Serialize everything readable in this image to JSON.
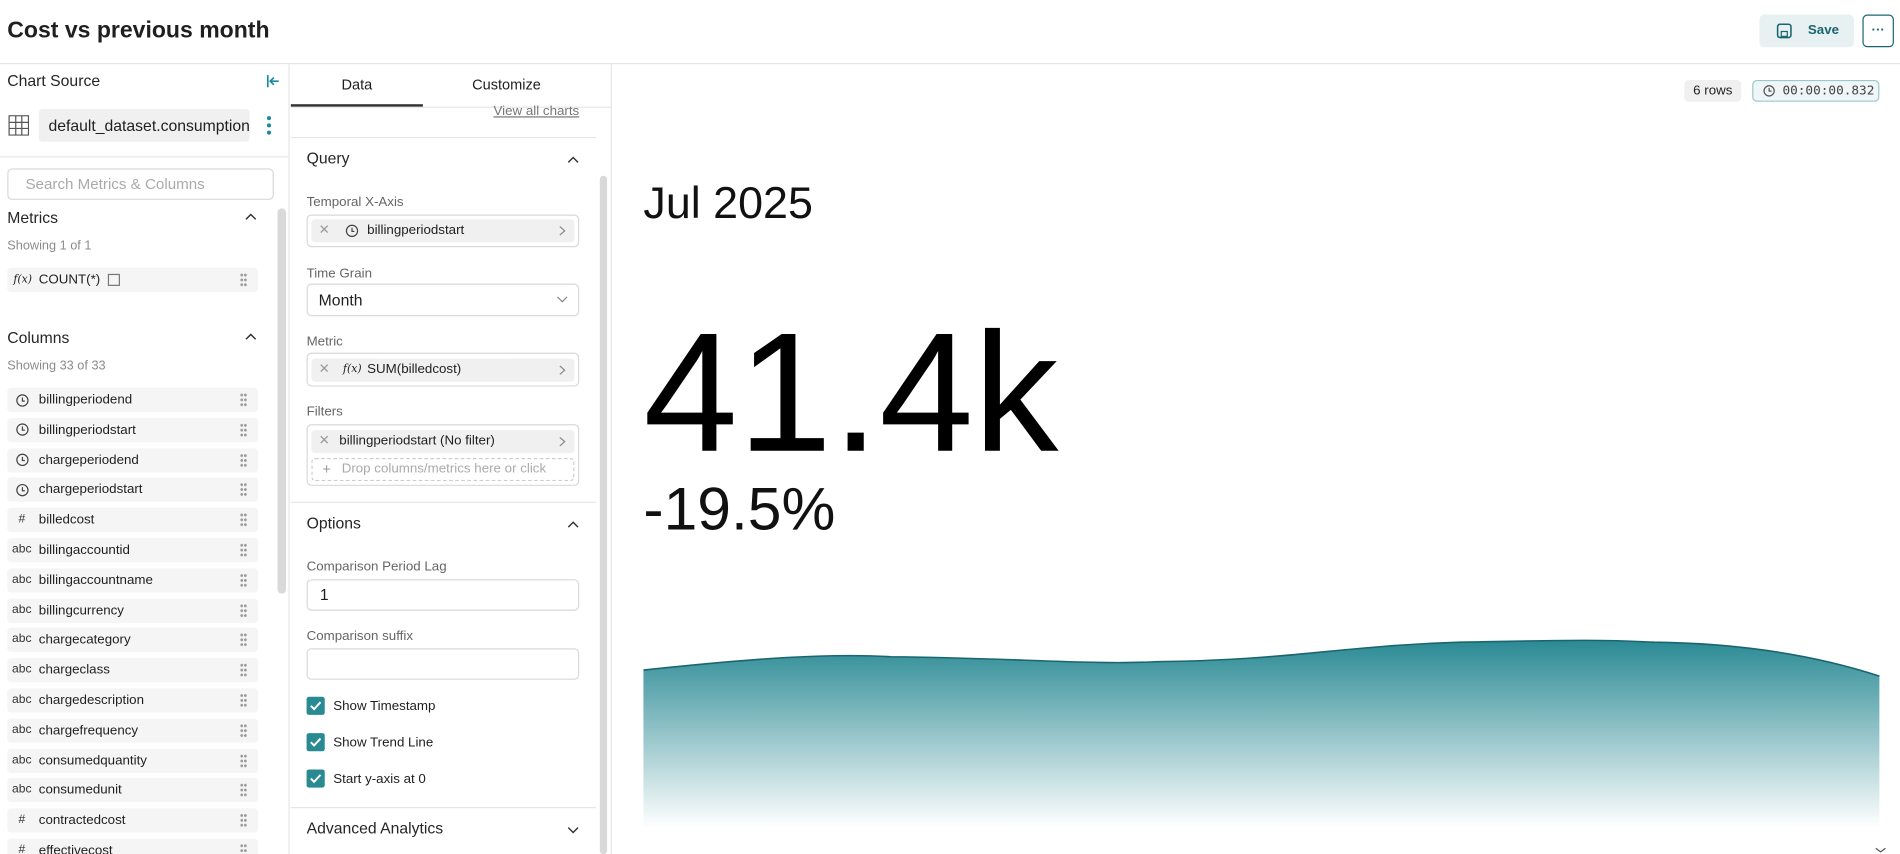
{
  "header": {
    "title": "Cost vs previous month",
    "save": "Save",
    "more": "···"
  },
  "source": {
    "title": "Chart Source",
    "dataset": "default_dataset.consumption",
    "search": "Search Metrics & Columns"
  },
  "metrics": {
    "title": "Metrics",
    "showing": "Showing 1 of 1",
    "items": [
      {
        "prefix": "f(x)",
        "name": "COUNT(*)"
      }
    ]
  },
  "columns": {
    "title": "Columns",
    "showing": "Showing 33 of 33",
    "items": [
      {
        "name": "billingperiodend"
      },
      {
        "name": "billingperiodstart"
      },
      {
        "name": "chargeperiodend"
      },
      {
        "name": "chargeperiodstart"
      },
      {
        "type_label": "#",
        "name": "billedcost"
      },
      {
        "type_label": "abc",
        "name": "billingaccountid"
      },
      {
        "type_label": "abc",
        "name": "billingaccountname"
      },
      {
        "type_label": "abc",
        "name": "billingcurrency"
      },
      {
        "type_label": "abc",
        "name": "chargecategory"
      },
      {
        "type_label": "abc",
        "name": "chargeclass"
      },
      {
        "type_label": "abc",
        "name": "chargedescription"
      },
      {
        "type_label": "abc",
        "name": "chargefrequency"
      },
      {
        "type_label": "abc",
        "name": "consumedquantity"
      },
      {
        "type_label": "abc",
        "name": "consumedunit"
      },
      {
        "type_label": "#",
        "name": "contractedcost"
      },
      {
        "type_label": "#",
        "name": "effectivecost"
      }
    ]
  },
  "tabs": [
    "Data",
    "Customize"
  ],
  "view_all": "View all charts",
  "query": {
    "title": "Query",
    "x_axis_label": "Temporal X-Axis",
    "x_axis": "billingperiodstart",
    "grain_label": "Time Grain",
    "grain": "Month",
    "metric_label": "Metric",
    "metric_prefix": "f(x)",
    "metric": "SUM(billedcost)",
    "filters_label": "Filters",
    "filter": "billingperiodstart (No filter)",
    "drop_plus": "+",
    "drop": "Drop columns/metrics here or click"
  },
  "options": {
    "title": "Options",
    "lag_label": "Comparison Period Lag",
    "lag": "1",
    "suffix_label": "Comparison suffix",
    "checkboxes": [
      {
        "label": "Show Timestamp",
        "checked": true
      },
      {
        "label": "Show Trend Line",
        "checked": true
      },
      {
        "label": "Start y-axis at 0",
        "checked": true
      }
    ]
  },
  "advanced": "Advanced Analytics",
  "result": {
    "rows": "6 rows",
    "time": "00:00:00.832",
    "timestamp": "Jul 2025",
    "value": "41.4k",
    "change": "-19.5%"
  }
}
